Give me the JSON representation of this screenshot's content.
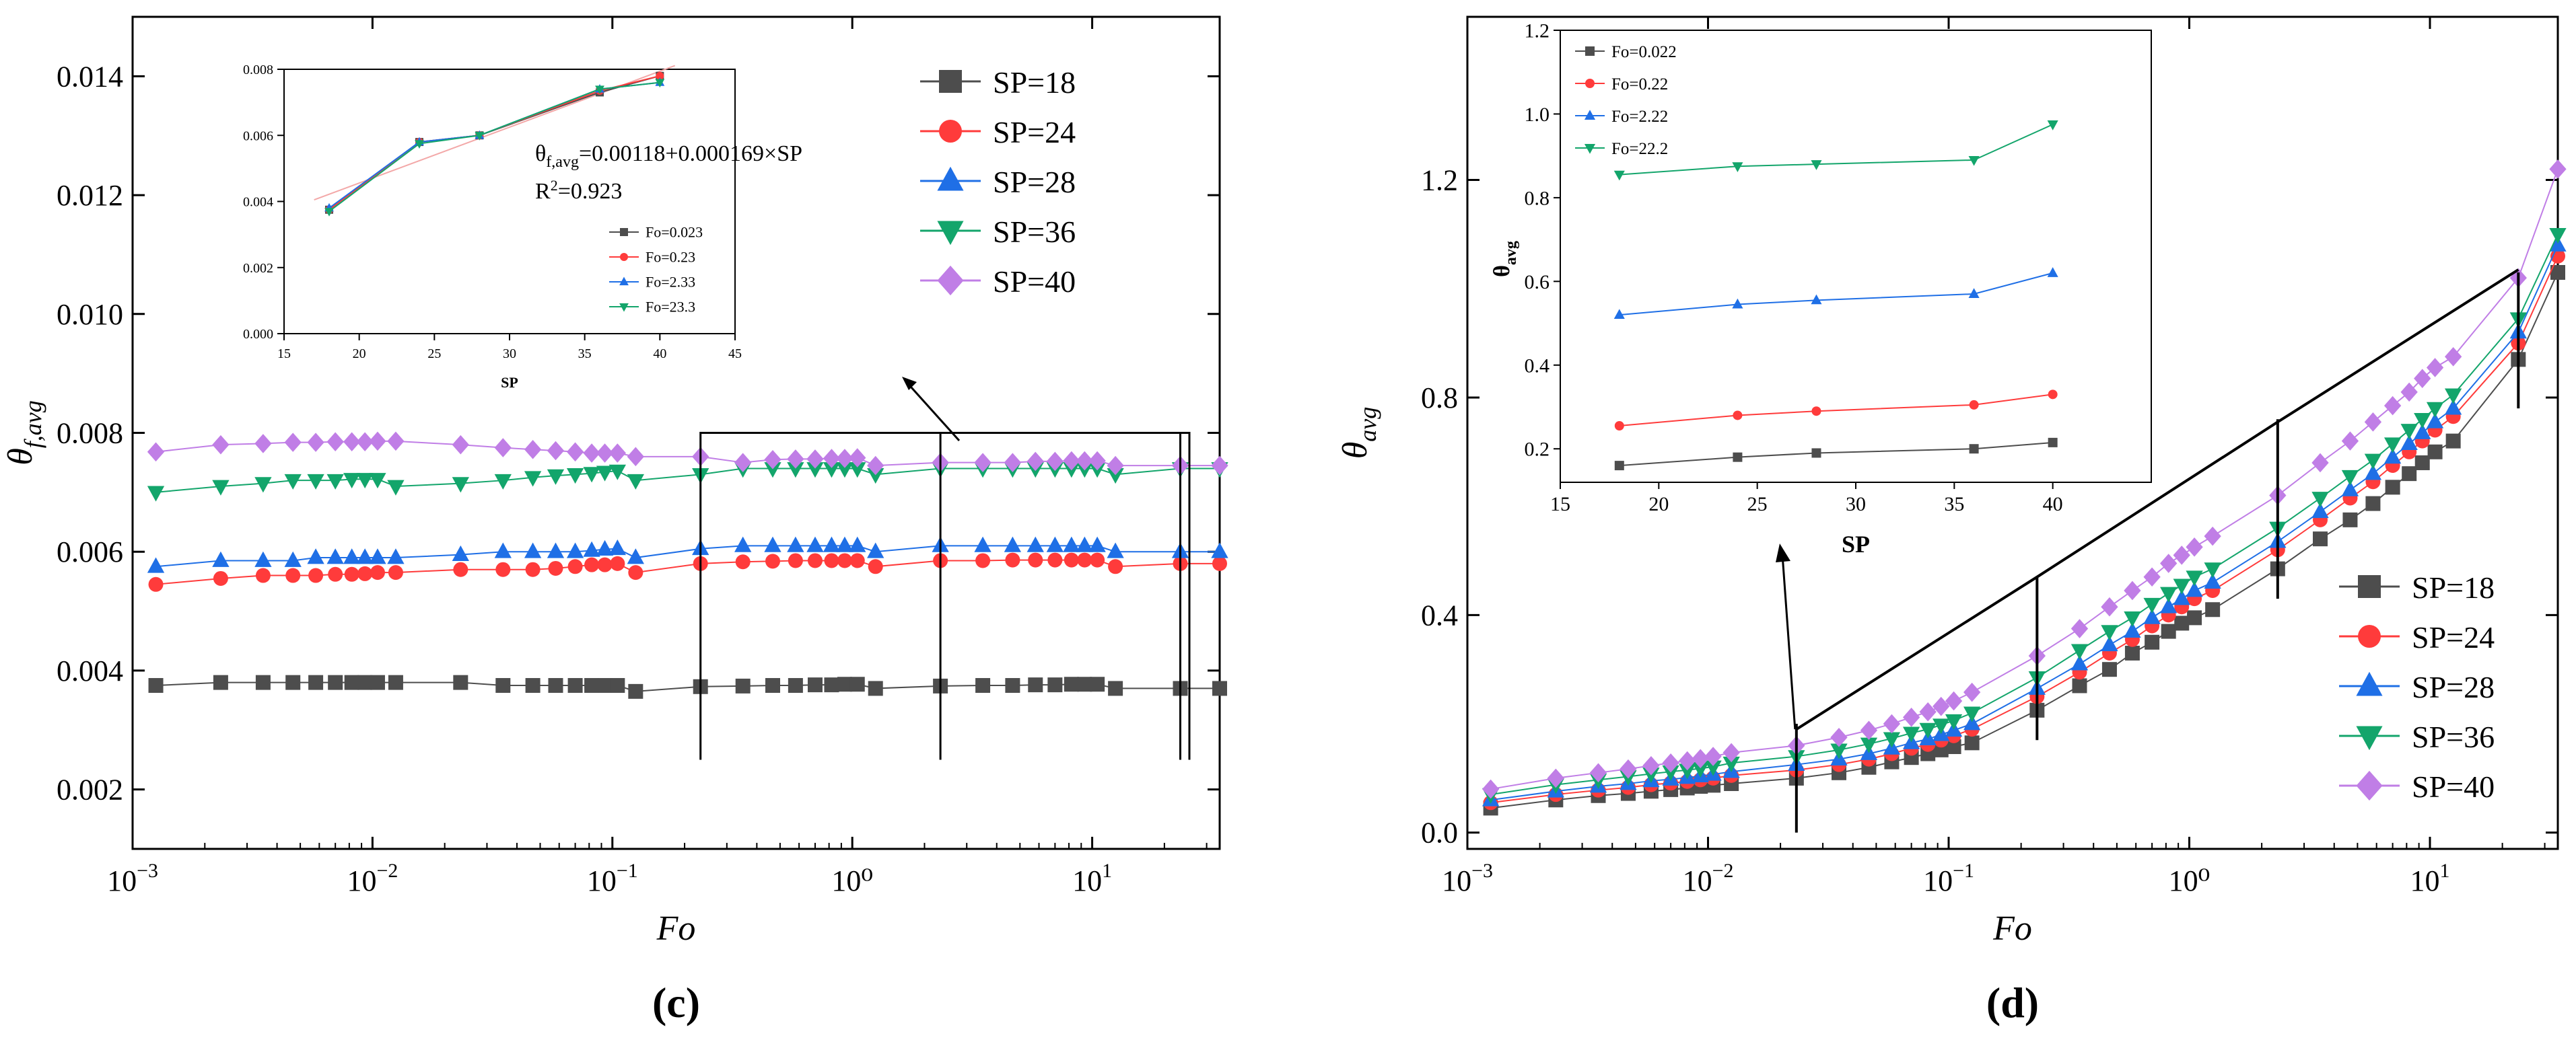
{
  "chart_data": [
    {
      "panel": "(c)",
      "type": "line",
      "xlabel": "Fo",
      "ylabel": "θf,avg",
      "xscale": "log",
      "xlim": [
        0.001,
        34
      ],
      "ylim": [
        0.001,
        0.015
      ],
      "x_ticks": [
        {
          "value": 0.001,
          "base": "10",
          "exp": "−3"
        },
        {
          "value": 0.01,
          "base": "10",
          "exp": "−2"
        },
        {
          "value": 0.1,
          "base": "10",
          "exp": "−1"
        },
        {
          "value": 1,
          "label": "10⁰",
          "base": "10",
          "exp": "0"
        },
        {
          "value": 10,
          "base": "10",
          "exp": "1"
        }
      ],
      "y_ticks": [
        "0.002",
        "0.004",
        "0.006",
        "0.008",
        "0.010",
        "0.012",
        "0.014"
      ],
      "legend_position": "top-right",
      "x": [
        0.00125,
        0.00233,
        0.0035,
        0.00466,
        0.0058,
        0.007,
        0.0082,
        0.0093,
        0.0105,
        0.0125,
        0.0233,
        0.035,
        0.0466,
        0.058,
        0.07,
        0.082,
        0.093,
        0.105,
        0.125,
        0.233,
        0.35,
        0.466,
        0.58,
        0.7,
        0.82,
        0.93,
        1.05,
        1.25,
        2.33,
        3.5,
        4.66,
        5.8,
        7.0,
        8.2,
        9.3,
        10.5,
        12.5,
        23.3,
        34.0
      ],
      "series": [
        {
          "name": "SP=18",
          "color": "#4d4d4d",
          "marker": "square",
          "values": [
            0.00375,
            0.0038,
            0.0038,
            0.0038,
            0.0038,
            0.0038,
            0.0038,
            0.0038,
            0.0038,
            0.0038,
            0.0038,
            0.00375,
            0.00375,
            0.00375,
            0.00375,
            0.00375,
            0.00375,
            0.00375,
            0.00365,
            0.00373,
            0.00374,
            0.00375,
            0.00375,
            0.00376,
            0.00376,
            0.00377,
            0.00377,
            0.0037,
            0.00374,
            0.00375,
            0.00375,
            0.00376,
            0.00376,
            0.00377,
            0.00377,
            0.00377,
            0.0037,
            0.0037,
            0.0037
          ]
        },
        {
          "name": "SP=24",
          "color": "#ff3b3b",
          "marker": "circle",
          "values": [
            0.00545,
            0.00555,
            0.0056,
            0.0056,
            0.0056,
            0.00562,
            0.00562,
            0.00563,
            0.00565,
            0.00565,
            0.0057,
            0.0057,
            0.0057,
            0.00572,
            0.00575,
            0.00578,
            0.00578,
            0.0058,
            0.00565,
            0.0058,
            0.00583,
            0.00584,
            0.00585,
            0.00585,
            0.00585,
            0.00585,
            0.00585,
            0.00575,
            0.00585,
            0.00585,
            0.00586,
            0.00586,
            0.00586,
            0.00586,
            0.00586,
            0.00586,
            0.00575,
            0.0058,
            0.0058
          ]
        },
        {
          "name": "SP=28",
          "color": "#1f6fe6",
          "marker": "triangle",
          "values": [
            0.00575,
            0.00585,
            0.00585,
            0.00585,
            0.0059,
            0.0059,
            0.0059,
            0.0059,
            0.0059,
            0.0059,
            0.00595,
            0.006,
            0.006,
            0.006,
            0.006,
            0.00602,
            0.00604,
            0.00605,
            0.0059,
            0.00605,
            0.0061,
            0.0061,
            0.0061,
            0.0061,
            0.0061,
            0.0061,
            0.0061,
            0.006,
            0.0061,
            0.0061,
            0.0061,
            0.0061,
            0.0061,
            0.0061,
            0.0061,
            0.0061,
            0.006,
            0.006,
            0.006
          ]
        },
        {
          "name": "SP=36",
          "color": "#13a56b",
          "marker": "triangle-down",
          "values": [
            0.007,
            0.0071,
            0.00715,
            0.0072,
            0.0072,
            0.0072,
            0.00722,
            0.00722,
            0.00722,
            0.0071,
            0.00715,
            0.0072,
            0.00725,
            0.00728,
            0.0073,
            0.00732,
            0.00734,
            0.00736,
            0.0072,
            0.0073,
            0.0074,
            0.0074,
            0.0074,
            0.0074,
            0.0074,
            0.0074,
            0.0074,
            0.0073,
            0.0074,
            0.0074,
            0.0074,
            0.0074,
            0.0074,
            0.0074,
            0.0074,
            0.0074,
            0.0073,
            0.0074,
            0.0074
          ]
        },
        {
          "name": "SP=40",
          "color": "#c07ee6",
          "marker": "diamond",
          "values": [
            0.00768,
            0.0078,
            0.00782,
            0.00784,
            0.00784,
            0.00785,
            0.00785,
            0.00785,
            0.00786,
            0.00786,
            0.0078,
            0.00775,
            0.00772,
            0.0077,
            0.00768,
            0.00766,
            0.00766,
            0.00766,
            0.0076,
            0.0076,
            0.0075,
            0.00755,
            0.00756,
            0.00756,
            0.00757,
            0.00757,
            0.00758,
            0.00745,
            0.0075,
            0.0075,
            0.0075,
            0.00752,
            0.00752,
            0.00753,
            0.00753,
            0.00753,
            0.00745,
            0.00745,
            0.00745
          ]
        }
      ],
      "inset": {
        "xlabel": "SP",
        "xlim": [
          15,
          45
        ],
        "ylim": [
          0,
          0.008
        ],
        "x_ticks": [
          "15",
          "20",
          "25",
          "30",
          "35",
          "40",
          "45"
        ],
        "y_ticks": [
          "0.000",
          "0.002",
          "0.004",
          "0.006",
          "0.008"
        ],
        "x": [
          18,
          24,
          28,
          36,
          40
        ],
        "series": [
          {
            "name": "Fo=0.023",
            "color": "#4d4d4d",
            "marker": "square",
            "values": [
              0.00375,
              0.0058,
              0.006,
              0.0073,
              0.0078
            ]
          },
          {
            "name": "Fo=0.23",
            "color": "#ff3b3b",
            "marker": "circle",
            "values": [
              0.00375,
              0.0058,
              0.006,
              0.00735,
              0.0078
            ]
          },
          {
            "name": "Fo=2.33",
            "color": "#1f6fe6",
            "marker": "triangle",
            "values": [
              0.0038,
              0.0058,
              0.006,
              0.0074,
              0.0076
            ]
          },
          {
            "name": "Fo=23.3",
            "color": "#13a56b",
            "marker": "triangle-down",
            "values": [
              0.0037,
              0.00575,
              0.006,
              0.0074,
              0.0076
            ]
          }
        ],
        "fit": {
          "color": "#f3a8a8",
          "x": [
            17,
            41
          ],
          "y": [
            0.00405,
            0.00811
          ]
        },
        "annotation_line1_base": "θ",
        "annotation_line1_sub": "f,avg",
        "annotation_line1_rest": "=0.00118+0.000169×SP",
        "annotation_line2_base": "R",
        "annotation_line2_sup": "2",
        "annotation_line2_rest": "=0.923"
      }
    },
    {
      "panel": "(d)",
      "type": "line",
      "xlabel": "Fo",
      "ylabel": "θavg",
      "xscale": "log",
      "xlim": [
        0.001,
        34
      ],
      "ylim": [
        -0.03,
        1.5
      ],
      "x_ticks": [
        {
          "value": 0.001,
          "base": "10",
          "exp": "−3"
        },
        {
          "value": 0.01,
          "base": "10",
          "exp": "−2"
        },
        {
          "value": 0.1,
          "base": "10",
          "exp": "−1"
        },
        {
          "value": 1,
          "label": "10⁰",
          "base": "10",
          "exp": "0"
        },
        {
          "value": 10,
          "base": "10",
          "exp": "1"
        }
      ],
      "y_ticks": [
        "0.0",
        "0.4",
        "0.8",
        "1.2"
      ],
      "legend_position": "bottom-right",
      "x": [
        0.00125,
        0.00233,
        0.0035,
        0.00466,
        0.0058,
        0.007,
        0.0082,
        0.0093,
        0.0105,
        0.0125,
        0.0233,
        0.035,
        0.0466,
        0.058,
        0.07,
        0.082,
        0.093,
        0.105,
        0.125,
        0.233,
        0.35,
        0.466,
        0.58,
        0.7,
        0.82,
        0.93,
        1.05,
        1.25,
        2.33,
        3.5,
        4.66,
        5.8,
        7.0,
        8.2,
        9.3,
        10.5,
        12.5,
        23.3,
        34.0
      ],
      "series": [
        {
          "name": "SP=18",
          "color": "#4d4d4d",
          "marker": "square",
          "values": [
            0.045,
            0.06,
            0.068,
            0.072,
            0.076,
            0.079,
            0.082,
            0.085,
            0.087,
            0.09,
            0.1,
            0.11,
            0.12,
            0.13,
            0.138,
            0.145,
            0.152,
            0.158,
            0.165,
            0.225,
            0.27,
            0.3,
            0.33,
            0.35,
            0.37,
            0.385,
            0.395,
            0.41,
            0.485,
            0.54,
            0.575,
            0.605,
            0.635,
            0.66,
            0.68,
            0.7,
            0.72,
            0.87,
            1.03
          ]
        },
        {
          "name": "SP=24",
          "color": "#ff3b3b",
          "marker": "circle",
          "values": [
            0.055,
            0.07,
            0.078,
            0.083,
            0.088,
            0.091,
            0.094,
            0.097,
            0.1,
            0.105,
            0.115,
            0.125,
            0.135,
            0.145,
            0.155,
            0.162,
            0.17,
            0.178,
            0.19,
            0.25,
            0.295,
            0.33,
            0.355,
            0.38,
            0.4,
            0.415,
            0.43,
            0.445,
            0.52,
            0.575,
            0.615,
            0.645,
            0.675,
            0.7,
            0.72,
            0.74,
            0.765,
            0.9,
            1.06
          ]
        },
        {
          "name": "SP=28",
          "color": "#1f6fe6",
          "marker": "triangle",
          "values": [
            0.06,
            0.076,
            0.085,
            0.09,
            0.095,
            0.098,
            0.101,
            0.104,
            0.107,
            0.112,
            0.125,
            0.135,
            0.145,
            0.155,
            0.165,
            0.172,
            0.18,
            0.188,
            0.2,
            0.265,
            0.31,
            0.345,
            0.37,
            0.395,
            0.415,
            0.43,
            0.445,
            0.46,
            0.535,
            0.59,
            0.63,
            0.66,
            0.69,
            0.715,
            0.735,
            0.755,
            0.78,
            0.92,
            1.08
          ]
        },
        {
          "name": "SP=36",
          "color": "#13a56b",
          "marker": "triangle-down",
          "values": [
            0.07,
            0.088,
            0.097,
            0.103,
            0.108,
            0.112,
            0.115,
            0.118,
            0.121,
            0.128,
            0.14,
            0.152,
            0.163,
            0.173,
            0.183,
            0.19,
            0.198,
            0.206,
            0.22,
            0.285,
            0.335,
            0.37,
            0.395,
            0.42,
            0.44,
            0.455,
            0.47,
            0.485,
            0.56,
            0.615,
            0.655,
            0.685,
            0.715,
            0.74,
            0.76,
            0.78,
            0.805,
            0.945,
            1.1
          ]
        },
        {
          "name": "SP=40",
          "color": "#c07ee6",
          "marker": "diamond",
          "values": [
            0.08,
            0.1,
            0.11,
            0.117,
            0.123,
            0.128,
            0.132,
            0.136,
            0.14,
            0.147,
            0.16,
            0.175,
            0.188,
            0.2,
            0.212,
            0.222,
            0.232,
            0.242,
            0.258,
            0.325,
            0.375,
            0.415,
            0.445,
            0.47,
            0.495,
            0.51,
            0.525,
            0.545,
            0.62,
            0.68,
            0.72,
            0.755,
            0.785,
            0.81,
            0.835,
            0.855,
            0.875,
            1.02,
            1.22
          ]
        }
      ],
      "inset": {
        "xlabel": "SP",
        "ylabel": "θavg",
        "xlim": [
          15,
          45
        ],
        "ylim": [
          0.12,
          1.2
        ],
        "x_ticks": [
          "15",
          "20",
          "25",
          "30",
          "35",
          "40"
        ],
        "y_ticks": [
          "0.2",
          "0.4",
          "0.6",
          "0.8",
          "1.0",
          "1.2"
        ],
        "x": [
          18,
          24,
          28,
          36,
          40
        ],
        "series": [
          {
            "name": "Fo=0.022",
            "color": "#4d4d4d",
            "marker": "square",
            "values": [
              0.16,
              0.18,
              0.19,
              0.2,
              0.215
            ]
          },
          {
            "name": "Fo=0.22",
            "color": "#ff3b3b",
            "marker": "circle",
            "values": [
              0.255,
              0.28,
              0.29,
              0.305,
              0.33
            ]
          },
          {
            "name": "Fo=2.22",
            "color": "#1f6fe6",
            "marker": "triangle",
            "values": [
              0.52,
              0.545,
              0.555,
              0.57,
              0.62
            ]
          },
          {
            "name": "Fo=22.2",
            "color": "#13a56b",
            "marker": "triangle-down",
            "values": [
              0.855,
              0.875,
              0.88,
              0.89,
              0.975
            ]
          }
        ]
      }
    }
  ]
}
